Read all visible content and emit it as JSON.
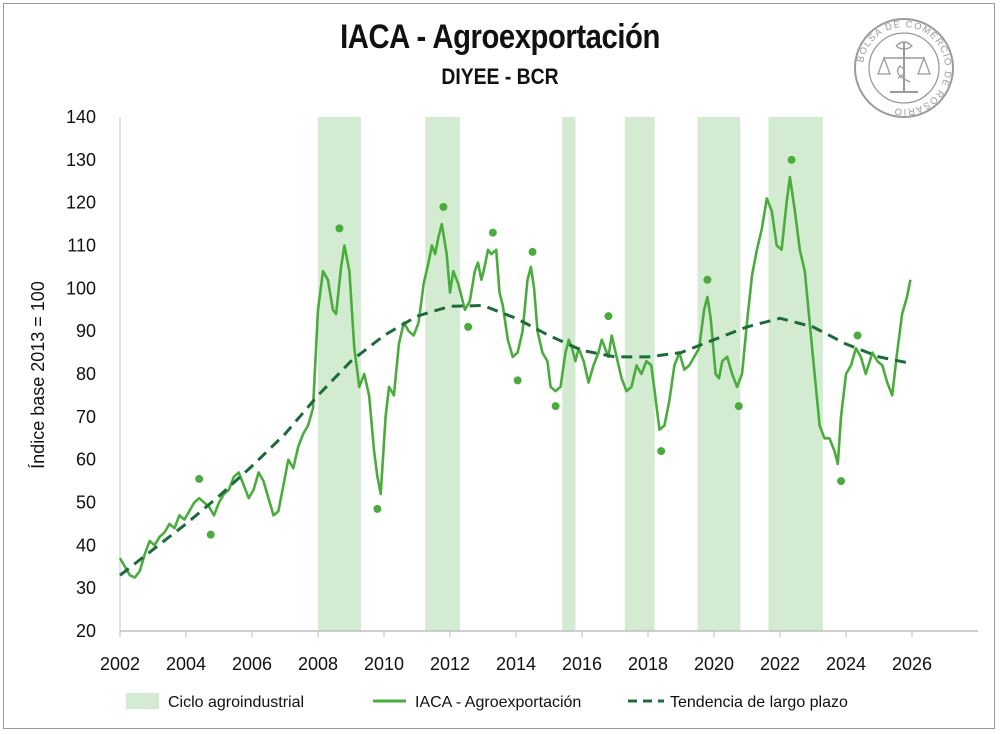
{
  "chart_data": {
    "type": "line",
    "title": "IACA - Agroexportación",
    "subtitle": "DIYEE - BCR",
    "ylabel": "Índice base 2013 = 100",
    "xlabel": "",
    "ylim": [
      20,
      140
    ],
    "xlim": [
      2002,
      2028
    ],
    "y_ticks": [
      "20",
      "30",
      "40",
      "50",
      "60",
      "70",
      "80",
      "90",
      "100",
      "110",
      "120",
      "130",
      "140"
    ],
    "x_ticks": [
      "2002",
      "2004",
      "2006",
      "2008",
      "2010",
      "2012",
      "2014",
      "2016",
      "2018",
      "2020",
      "2022",
      "2024",
      "2026"
    ],
    "grid": false,
    "legend_position": "bottom",
    "colors": {
      "band": "#d3ecd1",
      "line": "#4aac3c",
      "trend": "#1d6b3a",
      "dots": "#4aac3c"
    },
    "legend": [
      {
        "label": "Ciclo agroindustrial",
        "kind": "band"
      },
      {
        "label": "IACA - Agroexportación",
        "kind": "line"
      },
      {
        "label": "Tendencia de largo plazo",
        "kind": "dashed"
      }
    ],
    "cycle_bands": [
      [
        2008.0,
        2009.3
      ],
      [
        2011.25,
        2012.3
      ],
      [
        2015.4,
        2015.8
      ],
      [
        2017.3,
        2018.2
      ],
      [
        2019.5,
        2020.8
      ],
      [
        2021.65,
        2023.3
      ]
    ],
    "series": [
      {
        "name": "IACA - Agroexportación",
        "style": "solid",
        "points": [
          [
            2002.0,
            37
          ],
          [
            2002.15,
            35
          ],
          [
            2002.3,
            33
          ],
          [
            2002.45,
            32.5
          ],
          [
            2002.6,
            34
          ],
          [
            2002.75,
            38
          ],
          [
            2002.9,
            41
          ],
          [
            2003.05,
            40
          ],
          [
            2003.2,
            42
          ],
          [
            2003.35,
            43
          ],
          [
            2003.5,
            45
          ],
          [
            2003.65,
            44
          ],
          [
            2003.8,
            47
          ],
          [
            2003.95,
            46
          ],
          [
            2004.1,
            48
          ],
          [
            2004.25,
            50
          ],
          [
            2004.4,
            51
          ],
          [
            2004.55,
            50
          ],
          [
            2004.7,
            49
          ],
          [
            2004.85,
            47
          ],
          [
            2005.0,
            50
          ],
          [
            2005.15,
            52
          ],
          [
            2005.3,
            53
          ],
          [
            2005.45,
            56
          ],
          [
            2005.6,
            57
          ],
          [
            2005.75,
            54
          ],
          [
            2005.9,
            51
          ],
          [
            2006.05,
            53
          ],
          [
            2006.2,
            57
          ],
          [
            2006.35,
            55
          ],
          [
            2006.5,
            51
          ],
          [
            2006.65,
            47
          ],
          [
            2006.8,
            48
          ],
          [
            2006.95,
            54
          ],
          [
            2007.1,
            60
          ],
          [
            2007.25,
            58
          ],
          [
            2007.4,
            63
          ],
          [
            2007.55,
            66
          ],
          [
            2007.7,
            68
          ],
          [
            2007.85,
            72
          ],
          [
            2008.0,
            95
          ],
          [
            2008.15,
            104
          ],
          [
            2008.3,
            102
          ],
          [
            2008.45,
            95
          ],
          [
            2008.55,
            94
          ],
          [
            2008.7,
            105
          ],
          [
            2008.8,
            110
          ],
          [
            2008.95,
            104
          ],
          [
            2009.1,
            86
          ],
          [
            2009.25,
            77
          ],
          [
            2009.4,
            80
          ],
          [
            2009.55,
            75
          ],
          [
            2009.7,
            62
          ],
          [
            2009.8,
            56
          ],
          [
            2009.9,
            52
          ],
          [
            2010.05,
            70
          ],
          [
            2010.15,
            77
          ],
          [
            2010.3,
            75
          ],
          [
            2010.45,
            87
          ],
          [
            2010.6,
            92
          ],
          [
            2010.75,
            90
          ],
          [
            2010.9,
            89
          ],
          [
            2011.05,
            92
          ],
          [
            2011.2,
            101
          ],
          [
            2011.35,
            106
          ],
          [
            2011.45,
            110
          ],
          [
            2011.55,
            108
          ],
          [
            2011.65,
            112
          ],
          [
            2011.75,
            115
          ],
          [
            2011.9,
            108
          ],
          [
            2012.0,
            99
          ],
          [
            2012.1,
            104
          ],
          [
            2012.25,
            101
          ],
          [
            2012.45,
            95
          ],
          [
            2012.6,
            97
          ],
          [
            2012.75,
            104
          ],
          [
            2012.85,
            106
          ],
          [
            2012.95,
            102
          ],
          [
            2013.05,
            105
          ],
          [
            2013.15,
            109
          ],
          [
            2013.25,
            108
          ],
          [
            2013.4,
            109
          ],
          [
            2013.5,
            99
          ],
          [
            2013.6,
            96
          ],
          [
            2013.75,
            88
          ],
          [
            2013.9,
            84
          ],
          [
            2014.05,
            85
          ],
          [
            2014.2,
            90
          ],
          [
            2014.35,
            102
          ],
          [
            2014.45,
            105
          ],
          [
            2014.55,
            100
          ],
          [
            2014.65,
            90
          ],
          [
            2014.8,
            85
          ],
          [
            2014.95,
            83
          ],
          [
            2015.05,
            77
          ],
          [
            2015.2,
            76
          ],
          [
            2015.35,
            77
          ],
          [
            2015.5,
            85
          ],
          [
            2015.6,
            88
          ],
          [
            2015.7,
            86
          ],
          [
            2015.8,
            83
          ],
          [
            2015.9,
            86
          ],
          [
            2016.05,
            83
          ],
          [
            2016.2,
            78
          ],
          [
            2016.35,
            82
          ],
          [
            2016.5,
            85
          ],
          [
            2016.6,
            88
          ],
          [
            2016.7,
            86
          ],
          [
            2016.8,
            84
          ],
          [
            2016.9,
            89
          ],
          [
            2017.05,
            84
          ],
          [
            2017.2,
            79
          ],
          [
            2017.35,
            76
          ],
          [
            2017.5,
            77
          ],
          [
            2017.65,
            82
          ],
          [
            2017.8,
            80
          ],
          [
            2017.95,
            83
          ],
          [
            2018.1,
            82
          ],
          [
            2018.2,
            76
          ],
          [
            2018.35,
            67
          ],
          [
            2018.5,
            68
          ],
          [
            2018.65,
            74
          ],
          [
            2018.8,
            82
          ],
          [
            2018.95,
            85
          ],
          [
            2019.1,
            81
          ],
          [
            2019.25,
            82
          ],
          [
            2019.4,
            84
          ],
          [
            2019.55,
            86
          ],
          [
            2019.7,
            95
          ],
          [
            2019.8,
            98
          ],
          [
            2019.9,
            93
          ],
          [
            2020.05,
            80
          ],
          [
            2020.15,
            79
          ],
          [
            2020.25,
            83
          ],
          [
            2020.4,
            84
          ],
          [
            2020.55,
            80
          ],
          [
            2020.7,
            77
          ],
          [
            2020.85,
            80
          ],
          [
            2021.0,
            92
          ],
          [
            2021.15,
            103
          ],
          [
            2021.3,
            109
          ],
          [
            2021.45,
            114
          ],
          [
            2021.6,
            121
          ],
          [
            2021.75,
            118
          ],
          [
            2021.9,
            110
          ],
          [
            2022.05,
            109
          ],
          [
            2022.2,
            120
          ],
          [
            2022.3,
            126
          ],
          [
            2022.45,
            118
          ],
          [
            2022.6,
            109
          ],
          [
            2022.75,
            104
          ],
          [
            2022.9,
            92
          ],
          [
            2023.05,
            80
          ],
          [
            2023.2,
            68
          ],
          [
            2023.35,
            65
          ],
          [
            2023.5,
            65
          ],
          [
            2023.65,
            62
          ],
          [
            2023.75,
            59
          ],
          [
            2023.85,
            70
          ],
          [
            2024.0,
            80
          ],
          [
            2024.15,
            82
          ],
          [
            2024.3,
            86
          ],
          [
            2024.45,
            84
          ],
          [
            2024.6,
            80
          ],
          [
            2024.8,
            85
          ],
          [
            2024.95,
            83
          ],
          [
            2025.1,
            82
          ],
          [
            2025.25,
            78
          ],
          [
            2025.4,
            75
          ],
          [
            2025.55,
            85
          ],
          [
            2025.7,
            94
          ],
          [
            2025.85,
            98
          ],
          [
            2025.95,
            102
          ]
        ]
      },
      {
        "name": "Tendencia de largo plazo",
        "style": "dashed",
        "points": [
          [
            2002.0,
            33
          ],
          [
            2003.0,
            39
          ],
          [
            2004.0,
            45
          ],
          [
            2005.0,
            51.5
          ],
          [
            2006.0,
            58.5
          ],
          [
            2007.0,
            66
          ],
          [
            2008.0,
            75
          ],
          [
            2009.0,
            83
          ],
          [
            2010.0,
            89
          ],
          [
            2011.0,
            93.5
          ],
          [
            2012.0,
            95.8
          ],
          [
            2013.0,
            96
          ],
          [
            2014.0,
            93
          ],
          [
            2015.0,
            89
          ],
          [
            2016.0,
            85.5
          ],
          [
            2017.0,
            84
          ],
          [
            2018.0,
            84
          ],
          [
            2019.0,
            85
          ],
          [
            2020.0,
            88
          ],
          [
            2021.0,
            91
          ],
          [
            2022.0,
            93
          ],
          [
            2023.0,
            91
          ],
          [
            2024.0,
            87
          ],
          [
            2025.0,
            84
          ],
          [
            2025.95,
            82.5
          ]
        ]
      },
      {
        "name": "",
        "style": "dots",
        "points": [
          [
            2004.4,
            55.5
          ],
          [
            2004.75,
            42.5
          ],
          [
            2008.65,
            114
          ],
          [
            2009.8,
            48.5
          ],
          [
            2011.8,
            119
          ],
          [
            2012.55,
            91
          ],
          [
            2013.3,
            113
          ],
          [
            2014.05,
            78.5
          ],
          [
            2014.5,
            108.5
          ],
          [
            2015.2,
            72.5
          ],
          [
            2016.8,
            93.5
          ],
          [
            2018.4,
            62
          ],
          [
            2019.8,
            102
          ],
          [
            2020.75,
            72.5
          ],
          [
            2022.35,
            130
          ],
          [
            2023.85,
            55
          ],
          [
            2024.35,
            89
          ]
        ]
      }
    ]
  },
  "logo": {
    "text": "BOLSA DE COMERCIO DE ROSARIO",
    "name": "bcr-seal"
  }
}
